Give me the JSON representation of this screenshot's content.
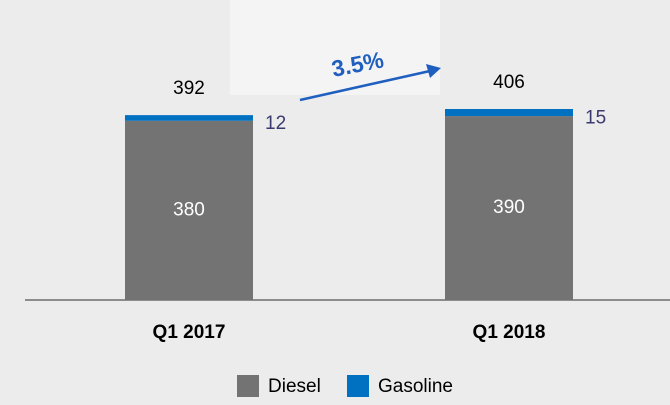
{
  "chart_data": {
    "type": "stacked-bar",
    "categories": [
      "Q1 2017",
      "Q1 2018"
    ],
    "series": [
      {
        "name": "Diesel",
        "color": "#737373",
        "values": [
          380,
          390
        ]
      },
      {
        "name": "Gasoline",
        "color": "#0070c0",
        "values": [
          12,
          15
        ]
      }
    ],
    "totals": [
      392,
      406
    ],
    "annotation": "3.5%"
  }
}
